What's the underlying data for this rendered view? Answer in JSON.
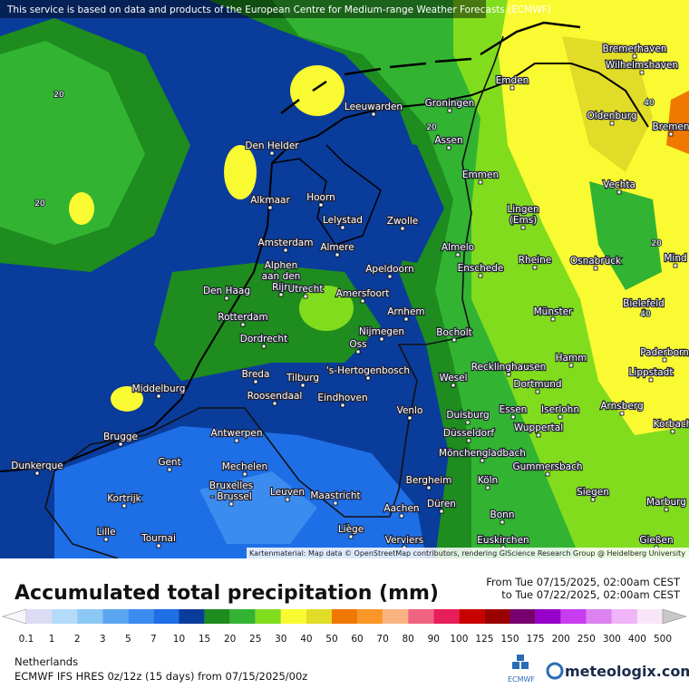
{
  "header": {
    "notice": "This service is based on data and products of the European Centre for Medium-range Weather Forecasts (ECMWF)"
  },
  "map": {
    "credit": "Kartenmaterial: Map data © OpenStreetMap contributors, rendering GIScience Research Group @ Heidelberg University",
    "cities": [
      "Bremerhaven",
      "Wilhelmshaven",
      "Emden",
      "Oldenburg",
      "Bremen",
      "Leeuwarden",
      "Groningen",
      "Assen",
      "Den Helder",
      "Emmen",
      "Vechta",
      "Hoorn",
      "Alkmaar",
      [
        "Lingen",
        "(Ems)"
      ],
      "Lelystad",
      "Zwolle",
      "Amsterdam",
      "Almere",
      "Almelo",
      "Mind",
      "Rheine",
      "Osnabrück",
      "Apeldoorn",
      "Enschede",
      [
        "Alphen",
        "aan den",
        "Rijn"
      ],
      "Utrecht",
      "Amersfoort",
      "Den Haag",
      "Bielefeld",
      "Arnhem",
      "Münster",
      "Rotterdam",
      "Nijmegen",
      "Bocholt",
      "Dordrecht",
      "Oss",
      "Hamm",
      "Paderborn",
      "Lippstadt",
      "Recklinghausen",
      "'s-Hertogenbosch",
      "Breda",
      "Tilburg",
      "Wesel",
      "Dortmund",
      "Middelburg",
      "Roosendaal",
      "Eindhoven",
      "Arnsberg",
      "Iserlohn",
      "Essen",
      "Venlo",
      "Duisburg",
      "Korbach",
      "Wuppertal",
      "Antwerpen",
      "Düsseldorf",
      "Brugge",
      "Mönchengladbach",
      "Gent",
      "Dunkerque",
      "Mechelen",
      "Gummersbach",
      "Bergheim",
      "Köln",
      [
        "Bruxelles",
        "- Brussel"
      ],
      "Leuven",
      "Maastricht",
      "Siegen",
      "Kortrijk",
      "Düren",
      "Marburg",
      "Aachen",
      "Bonn",
      "Liège",
      "Lille",
      "Tournai",
      "Verviers",
      "Euskirchen",
      "Gießen"
    ],
    "contour_labels": [
      "20",
      "20",
      "40",
      "20",
      "40",
      "20"
    ]
  },
  "title": "Accumulated total precipitation (mm)",
  "period": {
    "from": "From Tue 07/15/2025, 02:00am CEST",
    "to": "to Tue 07/22/2025, 02:00am CEST"
  },
  "legend": {
    "labels": [
      0.1,
      1,
      2,
      3,
      5,
      7,
      10,
      15,
      20,
      25,
      30,
      40,
      50,
      60,
      70,
      80,
      90,
      100,
      125,
      150,
      175,
      200,
      250,
      300,
      400,
      500
    ],
    "colors": [
      "#f6f6fc",
      "#dcdcf5",
      "#b4dcfa",
      "#8cc8f5",
      "#5aa5f0",
      "#3c8cf0",
      "#1e6ee6",
      "#0a3c9b",
      "#1e8c1e",
      "#32b432",
      "#82dc1e",
      "#fafa32",
      "#e1dc28",
      "#f07800",
      "#fa9628",
      "#fab482",
      "#f06482",
      "#e61e5a",
      "#c80000",
      "#9b0000",
      "#78006e",
      "#9600c8",
      "#c83cf0",
      "#dc82f0",
      "#f0b4f8",
      "#f8e6f8",
      "#c8c8c8"
    ]
  },
  "footer": {
    "region": "Netherlands",
    "model": "ECMWF IFS HRES 0z/12z (15 days) from  07/15/2025/00z",
    "ecmwf_logo": "ECMWF",
    "brand": "meteologix.com"
  }
}
